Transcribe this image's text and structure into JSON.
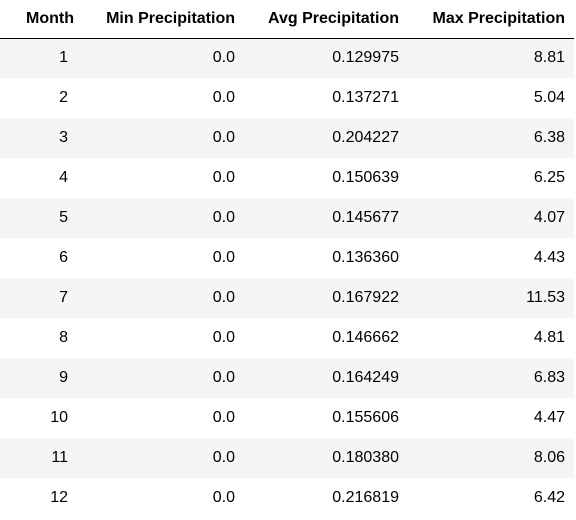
{
  "table": {
    "columns": [
      "Month",
      "Min Precipitation",
      "Avg Precipitation",
      "Max Precipitation"
    ],
    "rows": [
      {
        "month": "1",
        "min": "0.0",
        "avg": "0.129975",
        "max": "8.81"
      },
      {
        "month": "2",
        "min": "0.0",
        "avg": "0.137271",
        "max": "5.04"
      },
      {
        "month": "3",
        "min": "0.0",
        "avg": "0.204227",
        "max": "6.38"
      },
      {
        "month": "4",
        "min": "0.0",
        "avg": "0.150639",
        "max": "6.25"
      },
      {
        "month": "5",
        "min": "0.0",
        "avg": "0.145677",
        "max": "4.07"
      },
      {
        "month": "6",
        "min": "0.0",
        "avg": "0.136360",
        "max": "4.43"
      },
      {
        "month": "7",
        "min": "0.0",
        "avg": "0.167922",
        "max": "11.53"
      },
      {
        "month": "8",
        "min": "0.0",
        "avg": "0.146662",
        "max": "4.81"
      },
      {
        "month": "9",
        "min": "0.0",
        "avg": "0.164249",
        "max": "6.83"
      },
      {
        "month": "10",
        "min": "0.0",
        "avg": "0.155606",
        "max": "4.47"
      },
      {
        "month": "11",
        "min": "0.0",
        "avg": "0.180380",
        "max": "8.06"
      },
      {
        "month": "12",
        "min": "0.0",
        "avg": "0.216819",
        "max": "6.42"
      }
    ]
  }
}
